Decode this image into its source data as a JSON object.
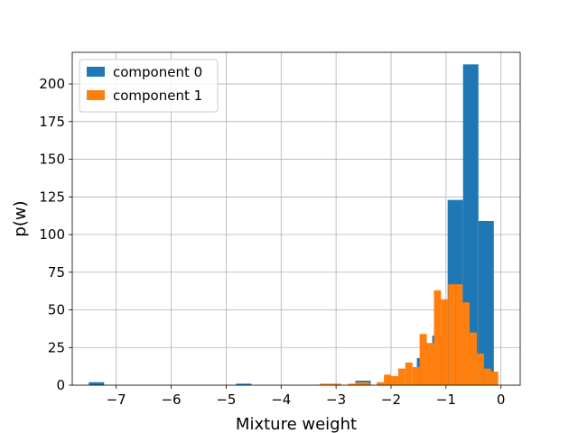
{
  "chart_data": {
    "type": "bar",
    "xlabel": "Mixture weight",
    "ylabel": "p(w)",
    "xlim": [
      -7.8,
      0.35
    ],
    "ylim": [
      0,
      221
    ],
    "xticks": [
      -7,
      -6,
      -5,
      -4,
      -3,
      -2,
      -1,
      0
    ],
    "yticks": [
      0,
      25,
      50,
      75,
      100,
      125,
      150,
      175,
      200
    ],
    "grid": true,
    "legend_position": "top-left",
    "series": [
      {
        "name": "component 0",
        "color": "#1f77b4",
        "bins": [
          {
            "x0": -7.5,
            "x1": -7.22,
            "value": 2
          },
          {
            "x0": -4.82,
            "x1": -4.54,
            "value": 1
          },
          {
            "x0": -2.65,
            "x1": -2.37,
            "value": 3
          },
          {
            "x0": -1.53,
            "x1": -1.25,
            "value": 18
          },
          {
            "x0": -1.25,
            "x1": -0.97,
            "value": 33
          },
          {
            "x0": -0.97,
            "x1": -0.69,
            "value": 123
          },
          {
            "x0": -0.69,
            "x1": -0.41,
            "value": 213
          },
          {
            "x0": -0.41,
            "x1": -0.13,
            "value": 109
          }
        ]
      },
      {
        "name": "component 1",
        "color": "#ff7f0e",
        "bins": [
          {
            "x0": -3.3,
            "x1": -3.17,
            "value": 1
          },
          {
            "x0": -3.17,
            "x1": -3.04,
            "value": 1
          },
          {
            "x0": -3.04,
            "x1": -2.91,
            "value": 1
          },
          {
            "x0": -2.78,
            "x1": -2.65,
            "value": 1
          },
          {
            "x0": -2.65,
            "x1": -2.52,
            "value": 2
          },
          {
            "x0": -2.52,
            "x1": -2.39,
            "value": 2
          },
          {
            "x0": -2.26,
            "x1": -2.13,
            "value": 2
          },
          {
            "x0": -2.13,
            "x1": -2.0,
            "value": 7
          },
          {
            "x0": -2.0,
            "x1": -1.87,
            "value": 6
          },
          {
            "x0": -1.87,
            "x1": -1.74,
            "value": 11
          },
          {
            "x0": -1.74,
            "x1": -1.61,
            "value": 15
          },
          {
            "x0": -1.61,
            "x1": -1.48,
            "value": 12
          },
          {
            "x0": -1.48,
            "x1": -1.35,
            "value": 34
          },
          {
            "x0": -1.35,
            "x1": -1.22,
            "value": 28
          },
          {
            "x0": -1.22,
            "x1": -1.09,
            "value": 63
          },
          {
            "x0": -1.09,
            "x1": -0.96,
            "value": 57
          },
          {
            "x0": -0.96,
            "x1": -0.83,
            "value": 67
          },
          {
            "x0": -0.83,
            "x1": -0.7,
            "value": 67
          },
          {
            "x0": -0.7,
            "x1": -0.57,
            "value": 55
          },
          {
            "x0": -0.57,
            "x1": -0.44,
            "value": 35
          },
          {
            "x0": -0.44,
            "x1": -0.31,
            "value": 21
          },
          {
            "x0": -0.31,
            "x1": -0.18,
            "value": 11
          },
          {
            "x0": -0.18,
            "x1": -0.05,
            "value": 9
          }
        ]
      }
    ]
  }
}
